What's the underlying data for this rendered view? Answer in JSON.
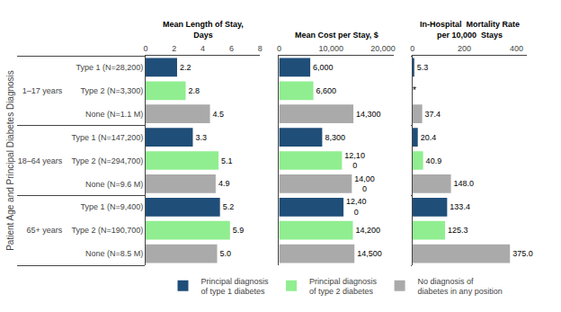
{
  "chart_data": [
    {
      "type": "bar",
      "orientation": "horizontal",
      "title": "Mean Length of Stay,\nDays",
      "ylabel": "Patient Age and Principal Diabetes Diagnosis",
      "categories": [
        "Type 1 (N=28,200)",
        "Type 2 (N=3,300)",
        "None (N=1.1 M)",
        "Type 1 (N=147,200)",
        "Type 2 (N=294,700)",
        "None (N=9.6 M)",
        "Type 1 (N=9,400)",
        "Type 2 (N=190,700)",
        "None (N=8.5 M)"
      ],
      "category_groups": [
        "1–17 years",
        "1–17 years",
        "1–17 years",
        "18–64 years",
        "18–64 years",
        "18–64 years",
        "65+ years",
        "65+ years",
        "65+ years"
      ],
      "xlim": [
        0,
        8
      ],
      "xticks": [
        0,
        2,
        4,
        6,
        8
      ],
      "grid": false,
      "data_labels": true,
      "legend": "bottom",
      "series": [
        {
          "name": "Principal diagnosis\nof type 1 diabetes",
          "color": "#1F4E79",
          "values": [
            2.2,
            null,
            null,
            3.3,
            null,
            null,
            5.2,
            null,
            null
          ],
          "value_labels": [
            "2.2",
            null,
            null,
            "3.3",
            null,
            null,
            "5.2",
            null,
            null
          ]
        },
        {
          "name": "Principal diagnosis\nof type 2 diabetes",
          "color": "#90EE90",
          "values": [
            null,
            2.8,
            null,
            null,
            5.1,
            null,
            null,
            5.9,
            null
          ],
          "value_labels": [
            null,
            "2.8",
            null,
            null,
            "5.1",
            null,
            null,
            "5.9",
            null
          ]
        },
        {
          "name": "No diagnosis of\ndiabetes in any position",
          "color": "#AAAAAA",
          "values": [
            null,
            null,
            4.5,
            null,
            null,
            4.9,
            null,
            null,
            5.0
          ],
          "value_labels": [
            null,
            null,
            "4.5",
            null,
            null,
            "4.9",
            null,
            null,
            "5.0"
          ]
        }
      ]
    },
    {
      "type": "bar",
      "orientation": "horizontal",
      "title": "Mean Cost per Stay, $",
      "categories": [
        "Type 1 (N=28,200)",
        "Type 2 (N=3,300)",
        "None (N=1.1 M)",
        "Type 1 (N=147,200)",
        "Type 2 (N=294,700)",
        "None (N=9.6 M)",
        "Type 1 (N=9,400)",
        "Type 2 (N=190,700)",
        "None (N=8.5 M)"
      ],
      "category_groups": [
        "1–17 years",
        "1–17 years",
        "1–17 years",
        "18–64 years",
        "18–64 years",
        "18–64 years",
        "65+ years",
        "65+ years",
        "65+ years"
      ],
      "xlim": [
        0,
        22000
      ],
      "xticks": [
        0,
        {
          "value": 10000,
          "label": "10,000"
        },
        {
          "value": 20000,
          "label": "20,000"
        }
      ],
      "grid": false,
      "data_labels": true,
      "series": [
        {
          "name": "Principal diagnosis\nof type 1 diabetes",
          "color": "#1F4E79",
          "values": [
            6000,
            null,
            null,
            8300,
            null,
            null,
            12400,
            null,
            null
          ],
          "value_labels": [
            "6,000",
            null,
            null,
            "8,300",
            null,
            null,
            "12,40\n0",
            null,
            null
          ]
        },
        {
          "name": "Principal diagnosis\nof type 2 diabetes",
          "color": "#90EE90",
          "values": [
            null,
            6600,
            null,
            null,
            12100,
            null,
            null,
            14200,
            null
          ],
          "value_labels": [
            null,
            "6,600",
            null,
            null,
            "12,10\n0",
            null,
            null,
            "14,200",
            null
          ]
        },
        {
          "name": "No diagnosis of\ndiabetes in any position",
          "color": "#AAAAAA",
          "values": [
            null,
            null,
            14300,
            null,
            null,
            14000,
            null,
            null,
            14500
          ],
          "value_labels": [
            null,
            null,
            "14,300",
            null,
            null,
            "14,00\n0",
            null,
            null,
            "14,500"
          ]
        }
      ]
    },
    {
      "type": "bar",
      "orientation": "horizontal",
      "title": "In-Hospital  Mortality Rate\nper 10,000  Stays",
      "categories": [
        "Type 1 (N=28,200)",
        "Type 2 (N=3,300)",
        "None (N=1.1 M)",
        "Type 1 (N=147,200)",
        "Type 2 (N=294,700)",
        "None (N=9.6 M)",
        "Type 1 (N=9,400)",
        "Type 2 (N=190,700)",
        "None (N=8.5 M)"
      ],
      "category_groups": [
        "1–17 years",
        "1–17 years",
        "1–17 years",
        "18–64 years",
        "18–64 years",
        "18–64 years",
        "65+ years",
        "65+ years",
        "65+ years"
      ],
      "xlim": [
        0,
        440
      ],
      "xticks": [
        0,
        200,
        400
      ],
      "grid": false,
      "data_labels": true,
      "series": [
        {
          "name": "Principal diagnosis\nof type 1 diabetes",
          "color": "#1F4E79",
          "values": [
            5.3,
            null,
            null,
            20.4,
            null,
            null,
            133.4,
            null,
            null
          ],
          "value_labels": [
            "5.3",
            null,
            null,
            "20.4",
            null,
            null,
            "133.4",
            null,
            null
          ]
        },
        {
          "name": "Principal diagnosis\nof type 2 diabetes",
          "color": "#90EE90",
          "values": [
            null,
            null,
            null,
            null,
            40.9,
            null,
            null,
            125.3,
            null
          ],
          "value_labels": [
            null,
            "*",
            null,
            null,
            "40.9",
            null,
            null,
            "125.3",
            null
          ]
        },
        {
          "name": "No diagnosis of\ndiabetes in any position",
          "color": "#AAAAAA",
          "values": [
            null,
            null,
            37.4,
            null,
            null,
            148.0,
            null,
            null,
            375.0
          ],
          "value_labels": [
            null,
            null,
            "37.4",
            null,
            null,
            "148.0",
            null,
            null,
            "375.0"
          ]
        }
      ]
    }
  ]
}
